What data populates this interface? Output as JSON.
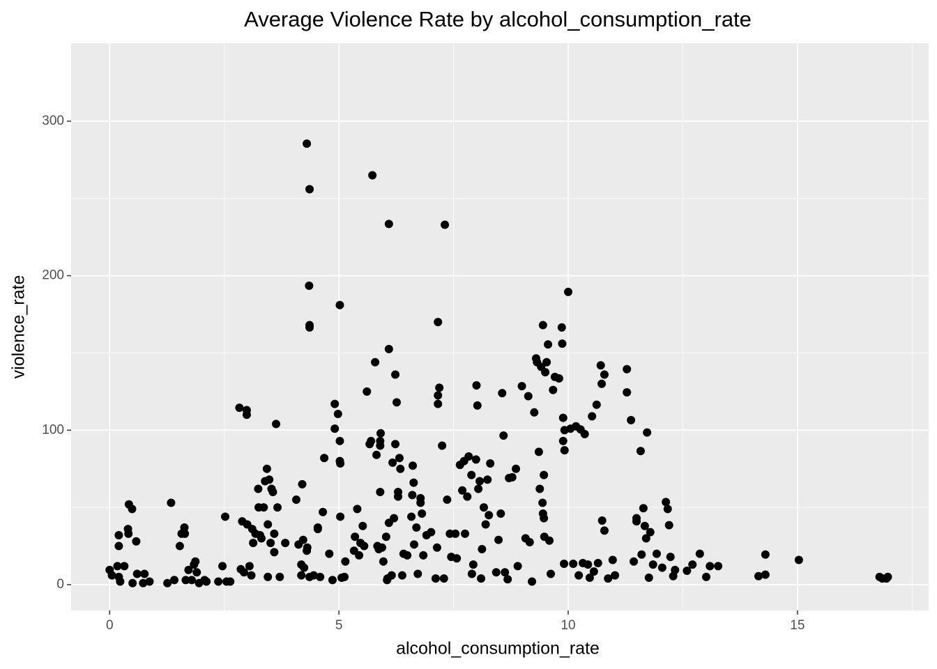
{
  "chart_data": {
    "type": "scatter",
    "title": "Average Violence Rate by alcohol_consumption_rate",
    "x_label": "alcohol_consumption_rate",
    "y_label": "violence_rate",
    "color": "#000000",
    "background": "#EBEBEB",
    "grid": true,
    "xlim": [
      -0.84,
      17.86
    ],
    "ylim": [
      -16.7,
      350.5
    ],
    "xticks": [
      0,
      5,
      10,
      15
    ],
    "yticks": [
      0,
      100,
      200,
      300
    ],
    "x_minor_grid": [
      2.5,
      7.5,
      12.5,
      17.5
    ],
    "y_minor_grid": [
      50,
      150,
      250
    ],
    "x": [
      0,
      0.05,
      0.2,
      0.17,
      0.2,
      0.2,
      0.23,
      0.32,
      0.4,
      0.41,
      0.42,
      0.49,
      0.5,
      0.58,
      0.6,
      0.73,
      0.76,
      0.87,
      1.34,
      1.26,
      1.41,
      1.53,
      1.57,
      1.63,
      1.64,
      1.66,
      1.72,
      1.79,
      1.84,
      1.87,
      1.9,
      1.95,
      2.07,
      2.11,
      2.37,
      2.46,
      2.52,
      2.55,
      2.63,
      2.83,
      2.89,
      2.86,
      2.93,
      2.99,
      2.99,
      3.0,
      3.05,
      3.09,
      3.11,
      3.13,
      3.18,
      3.24,
      3.25,
      3.28,
      3.31,
      3.36,
      3.39,
      3.43,
      3.45,
      3.45,
      3.48,
      3.51,
      3.53,
      3.56,
      3.59,
      3.59,
      3.63,
      3.66,
      3.71,
      3.83,
      4.07,
      4.12,
      4.18,
      4.18,
      4.2,
      4.22,
      4.24,
      4.3,
      4.36,
      4.35,
      4.36,
      4.36,
      4.36,
      4.3,
      4.31,
      4.45,
      4.54,
      4.54,
      4.59,
      4.65,
      4.68,
      4.79,
      4.86,
      4.91,
      4.91,
      4.98,
      5.02,
      5.02,
      5.02,
      5.03,
      5.03,
      5.06,
      5.12,
      5.14,
      5.33,
      5.35,
      5.4,
      5.44,
      5.47,
      5.52,
      5.55,
      5.61,
      5.67,
      5.7,
      5.73,
      5.79,
      5.82,
      5.84,
      5.87,
      5.9,
      5.9,
      5.91,
      5.9,
      5.94,
      5.97,
      6.03,
      6.05,
      6.06,
      6.09,
      6.09,
      6.09,
      6.15,
      6.17,
      6.2,
      6.23,
      6.23,
      6.26,
      6.29,
      6.29,
      6.32,
      6.34,
      6.38,
      6.41,
      6.49,
      6.58,
      6.6,
      6.61,
      6.63,
      6.64,
      6.69,
      6.72,
      6.78,
      6.78,
      6.81,
      6.84,
      6.91,
      7.01,
      7.11,
      7.14,
      7.16,
      7.16,
      7.19,
      7.16,
      7.25,
      7.31,
      7.29,
      7.36,
      7.42,
      7.45,
      7.54,
      7.57,
      7.64,
      7.69,
      7.73,
      7.75,
      7.8,
      7.83,
      7.89,
      7.9,
      7.93,
      7.99,
      8.0,
      8.02,
      8.04,
      8.07,
      8.1,
      8.12,
      8.16,
      8.2,
      8.24,
      8.27,
      8.3,
      8.43,
      8.48,
      8.53,
      8.56,
      8.59,
      8.62,
      8.68,
      8.71,
      8.78,
      8.86,
      8.9,
      8.99,
      9.07,
      9.13,
      9.16,
      9.21,
      9.26,
      9.3,
      9.32,
      9.36,
      9.38,
      9.41,
      9.44,
      9.45,
      9.47,
      9.47,
      9.48,
      9.45,
      9.5,
      9.53,
      9.56,
      9.59,
      9.62,
      9.67,
      9.71,
      9.8,
      9.86,
      9.87,
      9.89,
      9.89,
      9.92,
      9.92,
      9.91,
      10.0,
      10.05,
      10.11,
      10.17,
      10.23,
      10.27,
      10.32,
      10.36,
      10.43,
      10.47,
      10.52,
      10.56,
      10.62,
      10.65,
      10.71,
      10.73,
      10.74,
      10.79,
      10.79,
      10.87,
      10.97,
      11.02,
      11.28,
      11.28,
      11.37,
      11.43,
      11.49,
      11.49,
      11.58,
      11.6,
      11.64,
      11.67,
      11.7,
      11.72,
      11.76,
      11.79,
      11.85,
      11.93,
      12.05,
      12.13,
      12.17,
      12.2,
      12.23,
      12.29,
      12.33,
      12.59,
      12.71,
      12.87,
      13.01,
      13.09,
      13.27,
      14.15,
      14.3,
      14.3,
      15.03,
      16.79,
      16.85,
      16.94,
      16.97
    ],
    "values": [
      9.5,
      6,
      5,
      12,
      25,
      32,
      2,
      12,
      36,
      33,
      52,
      49,
      1,
      28,
      7,
      1,
      7,
      2,
      53,
      1,
      3,
      25,
      33,
      37,
      33,
      3,
      9.5,
      3,
      13,
      15,
      8,
      1,
      3,
      2,
      2,
      12,
      44,
      2,
      2,
      114.5,
      41,
      10,
      8,
      113,
      110,
      39,
      12,
      6,
      36,
      27,
      33,
      62,
      50,
      32,
      30,
      50,
      67,
      75,
      5,
      39,
      68,
      27,
      62,
      60,
      33,
      21,
      104,
      50,
      5,
      27,
      55,
      26,
      6,
      13,
      65,
      29,
      11,
      285.5,
      256,
      193.5,
      168,
      166.5,
      5,
      22,
      24,
      6,
      36,
      37,
      5,
      47,
      82,
      20,
      3,
      117,
      101,
      110.5,
      181,
      93,
      80,
      44,
      78.5,
      4.5,
      5,
      15,
      22,
      31,
      49,
      19,
      27,
      38,
      25,
      125,
      91,
      93,
      265,
      144,
      84,
      25,
      23,
      93,
      90,
      98,
      60,
      24,
      15,
      31,
      3,
      4,
      233.5,
      152.5,
      40,
      6,
      79,
      43,
      136,
      91,
      118,
      57,
      60,
      82,
      75,
      6,
      20,
      19,
      44,
      58,
      77,
      66,
      26,
      37,
      7,
      56,
      53,
      46,
      19,
      32,
      34,
      4,
      24,
      170,
      117,
      127.5,
      122.5,
      90,
      233,
      4,
      55,
      33,
      18,
      33,
      17,
      77.5,
      61,
      80,
      33,
      57,
      83,
      71,
      7,
      13,
      81,
      129,
      116,
      62,
      67,
      4,
      23,
      50,
      39,
      68,
      45,
      78.5,
      8,
      29,
      46,
      124,
      96.5,
      8,
      3.5,
      69,
      69.5,
      75,
      12,
      128.5,
      30,
      122,
      27.5,
      2,
      111.5,
      146.5,
      144,
      86,
      62,
      141,
      53,
      46,
      71,
      43,
      31,
      168,
      137.5,
      144,
      155.5,
      28.5,
      7,
      126,
      134.5,
      133.5,
      166.5,
      156,
      108,
      93,
      87,
      100,
      13.5,
      189.5,
      101,
      13.5,
      102.5,
      6,
      100.5,
      14,
      97.5,
      13,
      4.5,
      109,
      8.5,
      116.5,
      14,
      142,
      130,
      41.5,
      136,
      35,
      4,
      16,
      6,
      139.5,
      124.5,
      106.5,
      15,
      43,
      41,
      86.5,
      19.5,
      49.5,
      38,
      30,
      98.5,
      4.5,
      34,
      13,
      20,
      11,
      53.5,
      49,
      38.5,
      18,
      5.5,
      9.5,
      9,
      13,
      20,
      5,
      12,
      12,
      5.5,
      19.5,
      6.5,
      16,
      5,
      4,
      4,
      5
    ]
  }
}
